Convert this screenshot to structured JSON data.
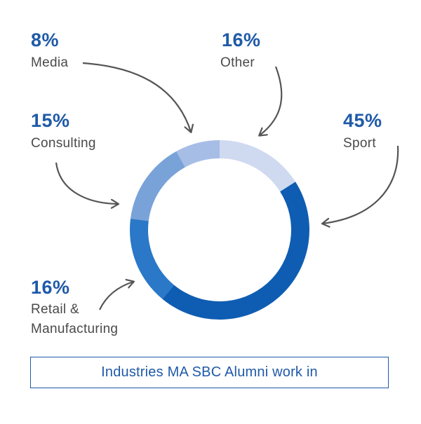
{
  "chart_data": {
    "type": "pie",
    "style": "donut",
    "title": "Industries MA SBC Alumni work in",
    "slices": [
      {
        "label": "Other",
        "value": 16,
        "display": "16%",
        "color": "#cfdaf1"
      },
      {
        "label": "Sport",
        "value": 45,
        "display": "45%",
        "color": "#0f5db2"
      },
      {
        "label": "Retail & Manufacturing",
        "display": "16%",
        "value": 16,
        "color": "#2a78c7",
        "label_lines": [
          "Retail &",
          "Manufacturing"
        ]
      },
      {
        "label": "Consulting",
        "value": 15,
        "display": "15%",
        "color": "#79a2d8"
      },
      {
        "label": "Media",
        "value": 8,
        "display": "8%",
        "color": "#a6bde6"
      }
    ]
  }
}
